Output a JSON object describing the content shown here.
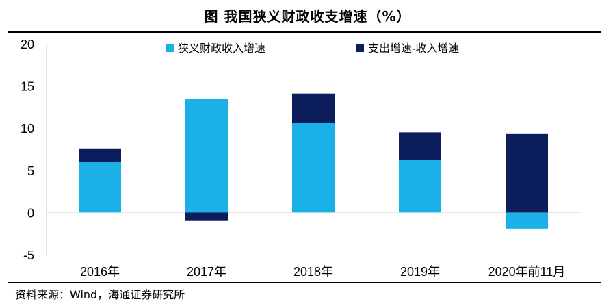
{
  "figure": {
    "title": "图 我国狭义财政收支增速（%）",
    "source": "资料来源：Wind，海通证券研究所"
  },
  "colors": {
    "series_1": "#1CB0E8",
    "series_2": "#0B1E5B",
    "axis": "#c8c8c8"
  },
  "chart_data": {
    "type": "bar",
    "stacked": true,
    "categories": [
      "2016年",
      "2017年",
      "2018年",
      "2019年",
      "2020年前11月"
    ],
    "series": [
      {
        "name": "狭义财政收入增速",
        "values": [
          6.0,
          13.5,
          10.6,
          6.2,
          -1.9
        ]
      },
      {
        "name": "支出增速-收入增速",
        "values": [
          1.6,
          -1.0,
          3.5,
          3.3,
          9.3
        ]
      }
    ],
    "ylim": [
      -5,
      20
    ],
    "yticks": [
      "20",
      "15",
      "10",
      "5",
      "0",
      "-5"
    ],
    "legend_position": "top",
    "grid": false
  }
}
